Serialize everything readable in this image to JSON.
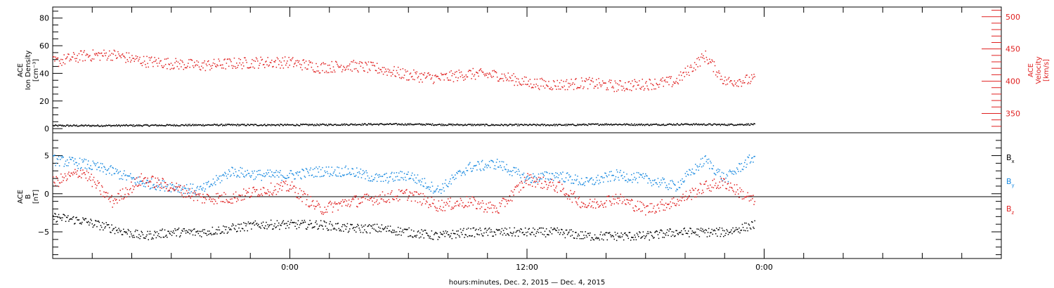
{
  "chart_data": [
    {
      "type": "scatter",
      "panel": "top",
      "x_range_hours": [
        -12,
        36
      ],
      "left_axis": {
        "label_lines": [
          "ACE",
          "Ion Density",
          "[cm⁻³]"
        ],
        "ylim": [
          -3,
          88
        ],
        "ticks": [
          0,
          20,
          40,
          60,
          80
        ],
        "color": "#000000"
      },
      "right_axis": {
        "label_lines": [
          "ACE",
          "Velocity",
          "[km/s]"
        ],
        "ylim": [
          320,
          515
        ],
        "ticks": [
          350,
          400,
          450,
          500
        ],
        "color": "#e02020"
      },
      "series": [
        {
          "axis": "left",
          "color": "#000000",
          "x_hours": [
            -12.0,
            -10.0,
            -8.0,
            -6.0,
            -4.0,
            -2.0,
            0.0,
            2.0,
            4.0,
            6.0,
            8.0,
            10.0,
            12.0,
            14.0,
            16.0,
            18.0,
            20.0,
            22.0,
            23.5
          ],
          "values": [
            2.5,
            2.5,
            2.6,
            2.8,
            3.0,
            3.0,
            3.0,
            3.2,
            3.5,
            3.5,
            3.2,
            3.0,
            3.0,
            3.0,
            3.5,
            3.2,
            3.5,
            3.2,
            3.5
          ]
        },
        {
          "axis": "right",
          "color": "#e02020",
          "x_hours": [
            -12.0,
            -10.5,
            -9.0,
            -7.5,
            -6.0,
            -4.5,
            -3.0,
            -1.5,
            0.0,
            1.5,
            3.0,
            4.5,
            6.0,
            7.5,
            9.0,
            10.5,
            12.0,
            13.5,
            15.0,
            16.5,
            18.0,
            19.5,
            21.0,
            22.0,
            23.5
          ],
          "values": [
            430,
            440,
            442,
            432,
            428,
            425,
            428,
            430,
            430,
            422,
            425,
            420,
            410,
            405,
            412,
            410,
            398,
            395,
            398,
            393,
            396,
            400,
            440,
            400,
            403
          ]
        }
      ]
    },
    {
      "type": "scatter",
      "panel": "bottom",
      "x_range_hours": [
        -12,
        36
      ],
      "y_axis": {
        "label_lines": [
          "ACE",
          "B",
          "[nT]"
        ],
        "ylim": [
          -8.5,
          8
        ],
        "ticks": [
          -5,
          0,
          5
        ]
      },
      "legend_position": "right",
      "series": [
        {
          "name": "B_x",
          "color": "#000000",
          "x_hours": [
            -12.0,
            -10.5,
            -9.0,
            -7.5,
            -6.0,
            -4.5,
            -3.0,
            -1.5,
            0.0,
            1.5,
            3.0,
            4.5,
            6.0,
            7.5,
            9.0,
            10.5,
            12.0,
            13.5,
            15.0,
            16.5,
            18.0,
            19.5,
            21.0,
            22.0,
            23.5
          ],
          "values": [
            -3.0,
            -3.5,
            -4.5,
            -5.5,
            -5.0,
            -5.0,
            -4.5,
            -4.0,
            -4.0,
            -4.0,
            -4.5,
            -4.5,
            -5.0,
            -5.5,
            -5.0,
            -5.0,
            -5.0,
            -5.0,
            -5.5,
            -5.5,
            -5.5,
            -5.0,
            -5.0,
            -5.0,
            -4.0
          ]
        },
        {
          "name": "B_y",
          "color": "#1a8ae0",
          "x_hours": [
            -12.0,
            -10.5,
            -9.0,
            -7.5,
            -6.0,
            -4.5,
            -3.0,
            -1.5,
            0.0,
            1.5,
            3.0,
            4.5,
            6.0,
            7.5,
            9.0,
            10.5,
            12.0,
            13.5,
            15.0,
            16.5,
            18.0,
            19.5,
            21.0,
            22.0,
            23.5
          ],
          "values": [
            4.5,
            4.0,
            3.0,
            1.5,
            1.0,
            0.5,
            3.0,
            2.5,
            2.5,
            3.0,
            3.0,
            2.0,
            2.5,
            0.5,
            3.5,
            4.0,
            2.0,
            2.5,
            1.5,
            2.5,
            2.0,
            1.0,
            4.5,
            2.0,
            5.0
          ]
        },
        {
          "name": "B_z",
          "color": "#e02020",
          "x_hours": [
            -12.0,
            -10.5,
            -9.0,
            -7.5,
            -6.0,
            -4.5,
            -3.0,
            -1.5,
            0.0,
            1.5,
            3.0,
            4.5,
            6.0,
            7.5,
            9.0,
            10.5,
            12.0,
            13.5,
            15.0,
            16.5,
            18.0,
            19.5,
            21.0,
            22.0,
            23.5
          ],
          "values": [
            1.5,
            3.0,
            -1.0,
            2.0,
            1.0,
            -0.5,
            -0.5,
            0.5,
            1.0,
            -2.0,
            -1.0,
            -0.5,
            0.0,
            -1.5,
            -1.0,
            -2.0,
            2.0,
            1.0,
            -1.5,
            -0.5,
            -2.0,
            -1.0,
            1.0,
            1.5,
            -1.0
          ]
        }
      ]
    }
  ],
  "x_axis": {
    "tick_labels": [
      {
        "hour": 0,
        "label": "0:00"
      },
      {
        "hour": 12,
        "label": "12:00"
      },
      {
        "hour": 24,
        "label": "0:00"
      }
    ],
    "minor_tick_step_hours": 2,
    "title": "hours:minutes, Dec.  2, 2015 — Dec.  4, 2015"
  },
  "legend": {
    "bx": {
      "main": "B",
      "sub": "x"
    },
    "by": {
      "main": "B",
      "sub": "y"
    },
    "bz": {
      "main": "B",
      "sub": "z"
    }
  },
  "colors": {
    "black_series": "#000000",
    "velocity": "#e02020",
    "by": "#1a8ae0",
    "bz": "#e02020"
  }
}
